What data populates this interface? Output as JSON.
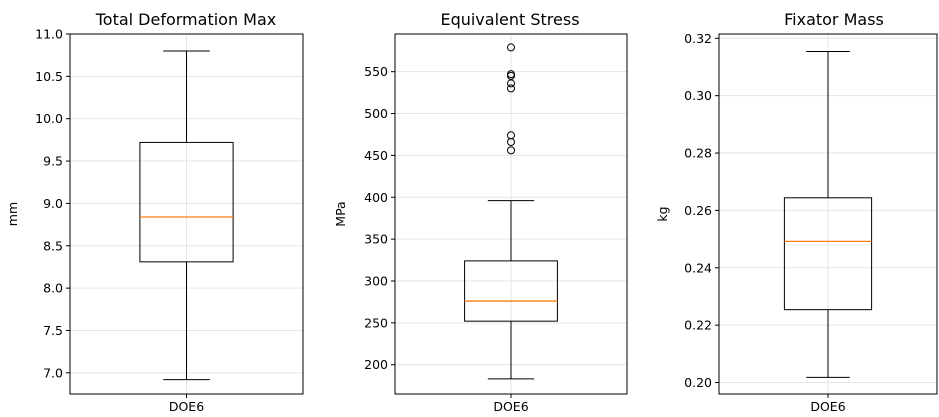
{
  "chart_data": [
    {
      "type": "box",
      "title": "Total Deformation Max",
      "ylabel": "mm",
      "categories": [
        "DOE6"
      ],
      "ylim": [
        6.75,
        11.0
      ],
      "yticks": [
        7.0,
        7.5,
        8.0,
        8.5,
        9.0,
        9.5,
        10.0,
        10.5,
        11.0
      ],
      "tick_labels": [
        "7.0",
        "7.5",
        "8.0",
        "8.5",
        "9.0",
        "9.5",
        "10.0",
        "10.5",
        "11.0"
      ],
      "box": {
        "whisker_low": 6.92,
        "q1": 8.31,
        "median": 8.84,
        "q3": 9.72,
        "whisker_high": 10.8
      },
      "outliers": [],
      "grid": true
    },
    {
      "type": "box",
      "title": "Equivalent Stress",
      "ylabel": "MPa",
      "categories": [
        "DOE6"
      ],
      "ylim": [
        165,
        595
      ],
      "yticks": [
        200,
        250,
        300,
        350,
        400,
        450,
        500,
        550
      ],
      "tick_labels": [
        "200",
        "250",
        "300",
        "350",
        "400",
        "450",
        "500",
        "550"
      ],
      "box": {
        "whisker_low": 183,
        "q1": 252,
        "median": 276,
        "q3": 324,
        "whisker_high": 396
      },
      "outliers": [
        456,
        466,
        474,
        530,
        536,
        545,
        547,
        579
      ],
      "grid": true
    },
    {
      "type": "box",
      "title": "Fixator Mass",
      "ylabel": "kg",
      "categories": [
        "DOE6"
      ],
      "ylim": [
        0.196,
        0.3215
      ],
      "yticks": [
        0.2,
        0.22,
        0.24,
        0.26,
        0.28,
        0.3,
        0.32
      ],
      "tick_labels": [
        "0.20",
        "0.22",
        "0.24",
        "0.26",
        "0.28",
        "0.30",
        "0.32"
      ],
      "box": {
        "whisker_low": 0.2018,
        "q1": 0.2254,
        "median": 0.2492,
        "q3": 0.2644,
        "whisker_high": 0.3154
      },
      "outliers": [],
      "grid": true
    }
  ],
  "colors": {
    "median": "#ff7f0e",
    "box": "#000000",
    "grid": "#e6e6e6",
    "axes": "#000000"
  }
}
